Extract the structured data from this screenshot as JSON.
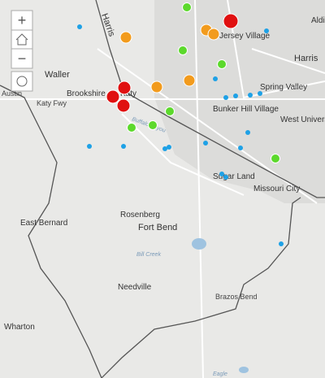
{
  "controls": {
    "zoom_in": "+",
    "zoom_out": "−"
  },
  "labels": {
    "harris_top": "Harris",
    "aldine": "Aldin",
    "jersey_village": "Jersey Village",
    "harris": "Harris",
    "waller": "Waller",
    "austin": "Austin",
    "brookshire": "Brookshire",
    "katy_fwy": "Katy Fwy",
    "katy": "Katy",
    "spring_valley": "Spring Valley",
    "bunker_hill": "Bunker Hill Village",
    "west_university": "West University Place",
    "buffalo_bayou": "Buffalo Bayou",
    "sugar_land": "Sugar Land",
    "missouri_city": "Missouri City",
    "east_bernard": "East Bernard",
    "rosenberg": "Rosenberg",
    "fort_bend": "Fort Bend",
    "needville": "Needville",
    "wharton": "Wharton",
    "bill_creek": "Bill Creek",
    "brazos_bend": "Brazos Bend",
    "eagle": "Eagle"
  }
}
